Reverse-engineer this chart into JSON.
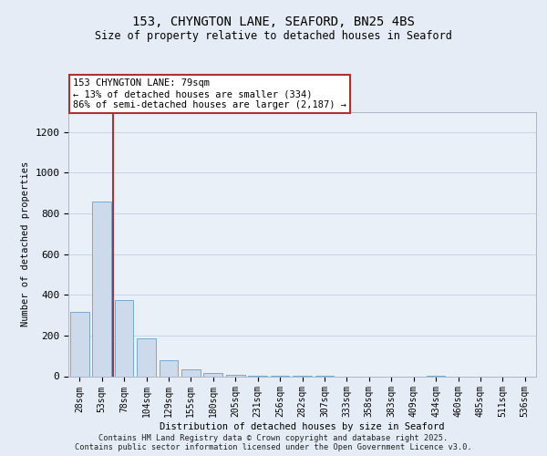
{
  "title": "153, CHYNGTON LANE, SEAFORD, BN25 4BS",
  "subtitle": "Size of property relative to detached houses in Seaford",
  "xlabel": "Distribution of detached houses by size in Seaford",
  "ylabel": "Number of detached properties",
  "categories": [
    "28sqm",
    "53sqm",
    "78sqm",
    "104sqm",
    "129sqm",
    "155sqm",
    "180sqm",
    "205sqm",
    "231sqm",
    "256sqm",
    "282sqm",
    "307sqm",
    "333sqm",
    "358sqm",
    "383sqm",
    "409sqm",
    "434sqm",
    "460sqm",
    "485sqm",
    "511sqm",
    "536sqm"
  ],
  "values": [
    315,
    860,
    375,
    185,
    80,
    35,
    15,
    8,
    4,
    3,
    3,
    1,
    0,
    0,
    0,
    0,
    1,
    0,
    0,
    0,
    0
  ],
  "vline_index": 2,
  "highlight_color": "#b8ccdf",
  "bar_color": "#ccdaec",
  "bar_edge_color": "#6a9ec5",
  "bg_color": "#e6ecf5",
  "plot_bg_color": "#eaf0f8",
  "grid_color": "#c8d4e4",
  "vline_color": "#b03030",
  "annotation_text": "153 CHYNGTON LANE: 79sqm\n← 13% of detached houses are smaller (334)\n86% of semi-detached houses are larger (2,187) →",
  "annotation_box_color": "#ffffff",
  "annotation_box_edge": "#b03030",
  "ylim": [
    0,
    1300
  ],
  "yticks": [
    0,
    200,
    400,
    600,
    800,
    1000,
    1200
  ],
  "footer1": "Contains HM Land Registry data © Crown copyright and database right 2025.",
  "footer2": "Contains public sector information licensed under the Open Government Licence v3.0."
}
